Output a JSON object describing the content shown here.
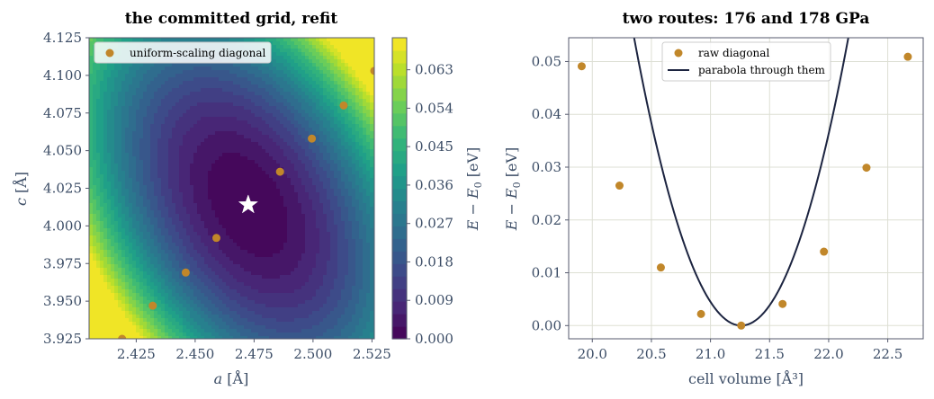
{
  "colors": {
    "marker": "#c1872a",
    "curve": "#1c2440",
    "axis_text": "#3c4d66",
    "spine": "#555a6e",
    "grid": "#dddfd4",
    "viridis": [
      "#440154",
      "#482878",
      "#3e4989",
      "#31688e",
      "#26828e",
      "#1f9e89",
      "#35b779",
      "#6ece58",
      "#b5de2b",
      "#fde725"
    ]
  },
  "chart_data": [
    {
      "type": "contour",
      "title": "the committed grid, refit",
      "xlabel": "a  [Å]",
      "ylabel": "c  [Å]",
      "xlim": [
        2.405,
        2.526
      ],
      "ylim": [
        3.925,
        4.125
      ],
      "x_ticks": [
        "2.425",
        "2.450",
        "2.475",
        "2.500",
        "2.525"
      ],
      "x_tick_values": [
        2.425,
        2.45,
        2.475,
        2.5,
        2.525
      ],
      "y_ticks": [
        "3.925",
        "3.950",
        "3.975",
        "4.000",
        "4.025",
        "4.050",
        "4.075",
        "4.100",
        "4.125"
      ],
      "y_tick_values": [
        3.925,
        3.95,
        3.975,
        4.0,
        4.025,
        4.05,
        4.075,
        4.1,
        4.125
      ],
      "colorbar": {
        "label": "E − E0  [eV]",
        "range": [
          0,
          0.0705
        ],
        "ticks": [
          "0.000",
          "0.009",
          "0.018",
          "0.027",
          "0.036",
          "0.045",
          "0.054",
          "0.063"
        ],
        "tick_values": [
          0,
          0.009,
          0.018,
          0.027,
          0.036,
          0.045,
          0.054,
          0.063
        ]
      },
      "minimum": {
        "a": 2.4725,
        "c": 4.014
      },
      "series": [
        {
          "name": "uniform-scaling diagonal",
          "points": [
            [
              2.419,
              3.925
            ],
            [
              2.432,
              3.947
            ],
            [
              2.446,
              3.969
            ],
            [
              2.459,
              3.992
            ],
            [
              2.486,
              4.036
            ],
            [
              2.4995,
              4.058
            ],
            [
              2.513,
              4.08
            ],
            [
              2.526,
              4.103
            ]
          ]
        }
      ],
      "legend": "top-left",
      "grid": false
    },
    {
      "type": "scatter+line",
      "title": "two routes: 176 and 178 GPa",
      "xlabel": "cell volume  [Å³]",
      "ylabel": "E − E0  [eV]",
      "xlim": [
        19.8,
        22.8
      ],
      "ylim": [
        -0.0025,
        0.0545
      ],
      "x_ticks": [
        "20.0",
        "20.5",
        "21.0",
        "21.5",
        "22.0",
        "22.5"
      ],
      "x_tick_values": [
        20.0,
        20.5,
        21.0,
        21.5,
        22.0,
        22.5
      ],
      "y_ticks": [
        "0.00",
        "0.01",
        "0.02",
        "0.03",
        "0.04",
        "0.05"
      ],
      "y_tick_values": [
        0.0,
        0.01,
        0.02,
        0.03,
        0.04,
        0.05
      ],
      "series": [
        {
          "name": "raw diagonal",
          "x": [
            19.91,
            20.23,
            20.58,
            20.92,
            21.26,
            21.61,
            21.96,
            22.32,
            22.67
          ],
          "y": [
            0.0491,
            0.0265,
            0.011,
            0.0022,
            0.0,
            0.0041,
            0.014,
            0.0299,
            0.0509
          ]
        },
        {
          "name": "parabola through them",
          "vertex": [
            21.26,
            0.0
          ],
          "curvature": 0.0995,
          "x_range": [
            19.91,
            22.67
          ]
        }
      ],
      "legend": "top-center",
      "grid": true
    }
  ]
}
